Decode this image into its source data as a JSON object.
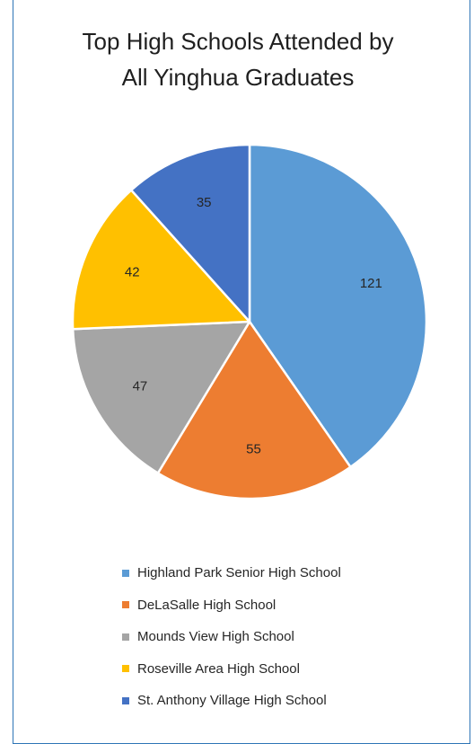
{
  "chart_data": {
    "type": "pie",
    "title_lines": [
      "Top High Schools Attended by",
      "All Yinghua Graduates"
    ],
    "slices": [
      {
        "label": "Highland Park Senior High School",
        "value": 121,
        "color": "#5b9bd5"
      },
      {
        "label": "DeLaSalle High School",
        "value": 55,
        "color": "#ed7d31"
      },
      {
        "label": "Mounds View High School",
        "value": 47,
        "color": "#a5a5a5"
      },
      {
        "label": "Roseville Area High School",
        "value": 42,
        "color": "#ffc000"
      },
      {
        "label": "St. Anthony Village High School",
        "value": 35,
        "color": "#4472c4"
      }
    ],
    "legend_position": "bottom",
    "data_labels": true
  }
}
